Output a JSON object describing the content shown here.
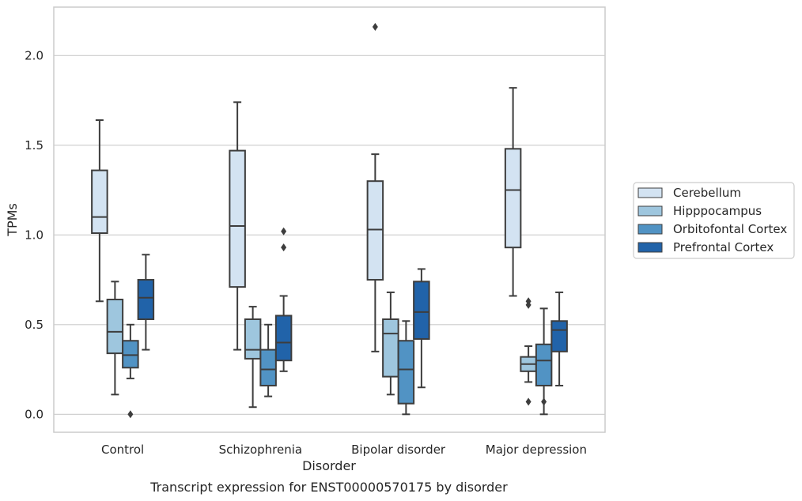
{
  "caption": "Transcript expression for ENST00000570175 by disorder",
  "chart_data": {
    "type": "box",
    "xlabel": "Disorder",
    "ylabel": "TPMs",
    "ylim": [
      -0.1,
      2.27
    ],
    "yticks": [
      "0.0",
      "0.5",
      "1.0",
      "1.5",
      "2.0"
    ],
    "grid": "horizontal",
    "legend_position": "right",
    "categories": [
      "Control",
      "Schizophrenia",
      "Bipolar disorder",
      "Major depression"
    ],
    "series": [
      {
        "name": "Cerebellum",
        "color": "#d3e3f2",
        "boxes": [
          {
            "whislo": 0.63,
            "q1": 1.01,
            "med": 1.1,
            "q3": 1.36,
            "whishi": 1.64,
            "fliers": []
          },
          {
            "whislo": 0.36,
            "q1": 0.71,
            "med": 1.05,
            "q3": 1.47,
            "whishi": 1.74,
            "fliers": []
          },
          {
            "whislo": 0.35,
            "q1": 0.75,
            "med": 1.03,
            "q3": 1.3,
            "whishi": 1.45,
            "fliers": [
              2.16
            ]
          },
          {
            "whislo": 0.66,
            "q1": 0.93,
            "med": 1.25,
            "q3": 1.48,
            "whishi": 1.82,
            "fliers": []
          }
        ]
      },
      {
        "name": "Hipppocampus",
        "color": "#9ec6de",
        "boxes": [
          {
            "whislo": 0.11,
            "q1": 0.34,
            "med": 0.46,
            "q3": 0.64,
            "whishi": 0.74,
            "fliers": []
          },
          {
            "whislo": 0.04,
            "q1": 0.31,
            "med": 0.36,
            "q3": 0.53,
            "whishi": 0.6,
            "fliers": []
          },
          {
            "whislo": 0.11,
            "q1": 0.21,
            "med": 0.45,
            "q3": 0.53,
            "whishi": 0.68,
            "fliers": []
          },
          {
            "whislo": 0.18,
            "q1": 0.24,
            "med": 0.28,
            "q3": 0.32,
            "whishi": 0.38,
            "fliers": [
              0.07,
              0.61,
              0.63
            ]
          }
        ]
      },
      {
        "name": "Orbitofontal Cortex",
        "color": "#5193c4",
        "boxes": [
          {
            "whislo": 0.2,
            "q1": 0.26,
            "med": 0.33,
            "q3": 0.41,
            "whishi": 0.5,
            "fliers": [
              0.0
            ]
          },
          {
            "whislo": 0.1,
            "q1": 0.16,
            "med": 0.25,
            "q3": 0.36,
            "whishi": 0.5,
            "fliers": []
          },
          {
            "whislo": 0.0,
            "q1": 0.06,
            "med": 0.25,
            "q3": 0.41,
            "whishi": 0.52,
            "fliers": []
          },
          {
            "whislo": 0.0,
            "q1": 0.16,
            "med": 0.3,
            "q3": 0.39,
            "whishi": 0.59,
            "fliers": [
              0.07
            ]
          }
        ]
      },
      {
        "name": "Prefrontal Cortex",
        "color": "#2163a9",
        "boxes": [
          {
            "whislo": 0.36,
            "q1": 0.53,
            "med": 0.65,
            "q3": 0.75,
            "whishi": 0.89,
            "fliers": []
          },
          {
            "whislo": 0.24,
            "q1": 0.3,
            "med": 0.4,
            "q3": 0.55,
            "whishi": 0.66,
            "fliers": [
              0.93,
              1.02
            ]
          },
          {
            "whislo": 0.15,
            "q1": 0.42,
            "med": 0.57,
            "q3": 0.74,
            "whishi": 0.81,
            "fliers": []
          },
          {
            "whislo": 0.16,
            "q1": 0.35,
            "med": 0.47,
            "q3": 0.52,
            "whishi": 0.68,
            "fliers": []
          }
        ]
      }
    ]
  }
}
